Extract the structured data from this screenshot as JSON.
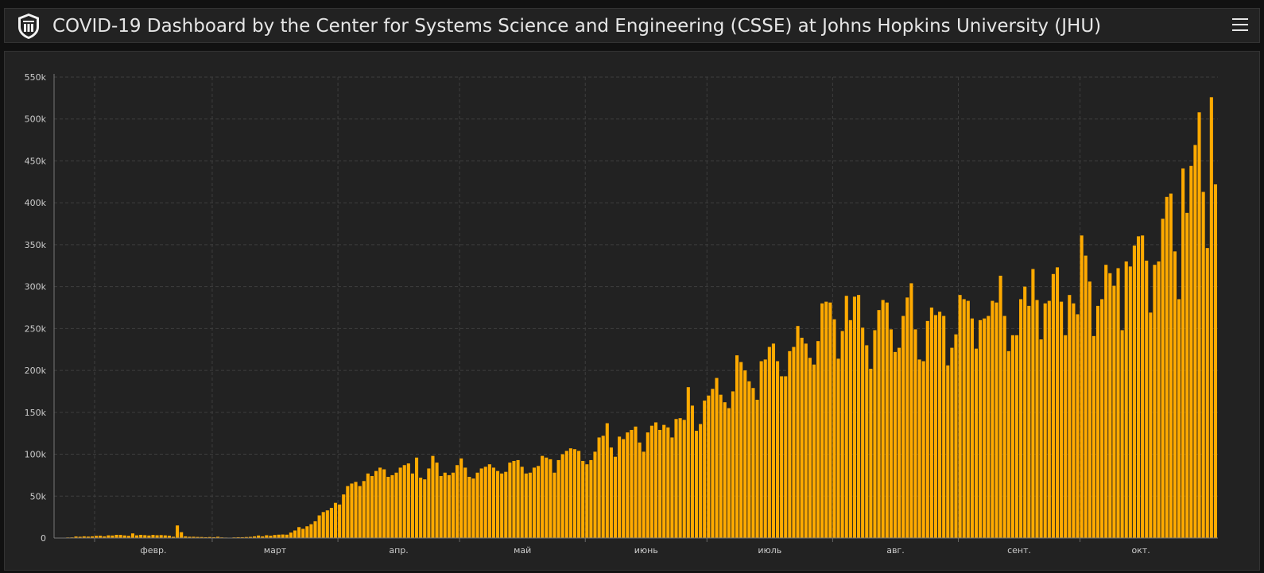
{
  "header": {
    "title": "COVID-19 Dashboard by the Center for Systems Science and Engineering (CSSE) at Johns Hopkins University (JHU)",
    "logo_icon": "jhu-shield-icon",
    "menu_icon": "hamburger-menu-icon"
  },
  "colors": {
    "background": "#222222",
    "bar": "#ffaa00",
    "grid": "#3e3e3e",
    "text": "#cccccc"
  },
  "chart_data": {
    "type": "bar",
    "title": "",
    "xlabel": "",
    "ylabel": "",
    "ylim": [
      0,
      550000
    ],
    "yticks": [
      0,
      50000,
      100000,
      150000,
      200000,
      250000,
      300000,
      350000,
      400000,
      450000,
      500000,
      550000
    ],
    "ytick_labels": [
      "0",
      "50k",
      "100k",
      "150k",
      "200k",
      "250k",
      "300k",
      "350k",
      "400k",
      "450k",
      "500k",
      "550k"
    ],
    "x_start": "2020-01-22",
    "month_ticks": [
      {
        "label": "февр.",
        "date": "2020-02-01"
      },
      {
        "label": "март",
        "date": "2020-03-01"
      },
      {
        "label": "апр.",
        "date": "2020-04-01"
      },
      {
        "label": "май",
        "date": "2020-05-01"
      },
      {
        "label": "июнь",
        "date": "2020-06-01"
      },
      {
        "label": "июль",
        "date": "2020-07-01"
      },
      {
        "label": "авг.",
        "date": "2020-08-01"
      },
      {
        "label": "сент.",
        "date": "2020-09-01"
      },
      {
        "label": "окт.",
        "date": "2020-10-01"
      }
    ],
    "grid": true,
    "values": [
      100,
      150,
      250,
      700,
      800,
      1800,
      1500,
      2000,
      1700,
      2000,
      2600,
      2800,
      2000,
      3200,
      3000,
      3800,
      3700,
      3100,
      2600,
      5500,
      3200,
      3800,
      3400,
      3000,
      3700,
      3300,
      3500,
      3200,
      2800,
      1500,
      15000,
      7000,
      2000,
      1500,
      1500,
      1300,
      1200,
      1000,
      1200,
      1000,
      1500,
      800,
      600,
      500,
      800,
      1000,
      1000,
      1200,
      1400,
      2000,
      3000,
      2000,
      3300,
      2800,
      3600,
      4000,
      4200,
      4000,
      6500,
      9000,
      13000,
      11000,
      14000,
      16500,
      20000,
      27000,
      31000,
      33000,
      36000,
      42000,
      40000,
      52000,
      62000,
      65000,
      67000,
      62000,
      68000,
      77000,
      74000,
      80000,
      84000,
      82000,
      73000,
      75000,
      78000,
      84000,
      87000,
      89000,
      77000,
      96000,
      72000,
      70000,
      83000,
      98000,
      90000,
      74000,
      78000,
      75000,
      78000,
      87000,
      95000,
      84000,
      73000,
      71000,
      78000,
      83000,
      85000,
      88000,
      84000,
      80000,
      77000,
      79000,
      90000,
      92000,
      93000,
      85000,
      77000,
      78000,
      84000,
      86000,
      98000,
      96000,
      94000,
      78000,
      93000,
      100000,
      104000,
      107000,
      106000,
      104000,
      92000,
      88000,
      93000,
      103000,
      120000,
      122000,
      137000,
      108000,
      97000,
      121000,
      118000,
      126000,
      129000,
      133000,
      114000,
      103000,
      126000,
      134000,
      138000,
      129000,
      135000,
      132000,
      120000,
      142000,
      143000,
      141000,
      180000,
      158000,
      128000,
      136000,
      164000,
      170000,
      178000,
      191000,
      171000,
      162000,
      155000,
      175000,
      218000,
      210000,
      200000,
      187000,
      179000,
      165000,
      211000,
      213000,
      228000,
      232000,
      211000,
      193000,
      193000,
      223000,
      228000,
      253000,
      239000,
      232000,
      215000,
      207000,
      235000,
      280000,
      282000,
      281000,
      261000,
      214000,
      247000,
      289000,
      260000,
      288000,
      290000,
      251000,
      230000,
      202000,
      248000,
      272000,
      284000,
      281000,
      249000,
      222000,
      227000,
      265000,
      287000,
      304000,
      249000,
      213000,
      211000,
      259000,
      275000,
      266000,
      270000,
      265000,
      206000,
      227000,
      243000,
      290000,
      285000,
      283000,
      262000,
      226000,
      260000,
      262000,
      265000,
      283000,
      281000,
      313000,
      265000,
      223000,
      242000,
      242000,
      285000,
      300000,
      277000,
      321000,
      284000,
      237000,
      280000,
      283000,
      315000,
      323000,
      282000,
      242000,
      290000,
      280000,
      267000,
      361000,
      337000,
      306000,
      241000,
      277000,
      285000,
      326000,
      316000,
      301000,
      322000,
      248000,
      330000,
      324000,
      349000,
      360000,
      361000,
      331000,
      269000,
      326000,
      330000,
      381000,
      407000,
      411000,
      342000,
      285000,
      441000,
      388000,
      444000,
      469000,
      508000,
      413000,
      346000,
      526000,
      422000
    ]
  }
}
